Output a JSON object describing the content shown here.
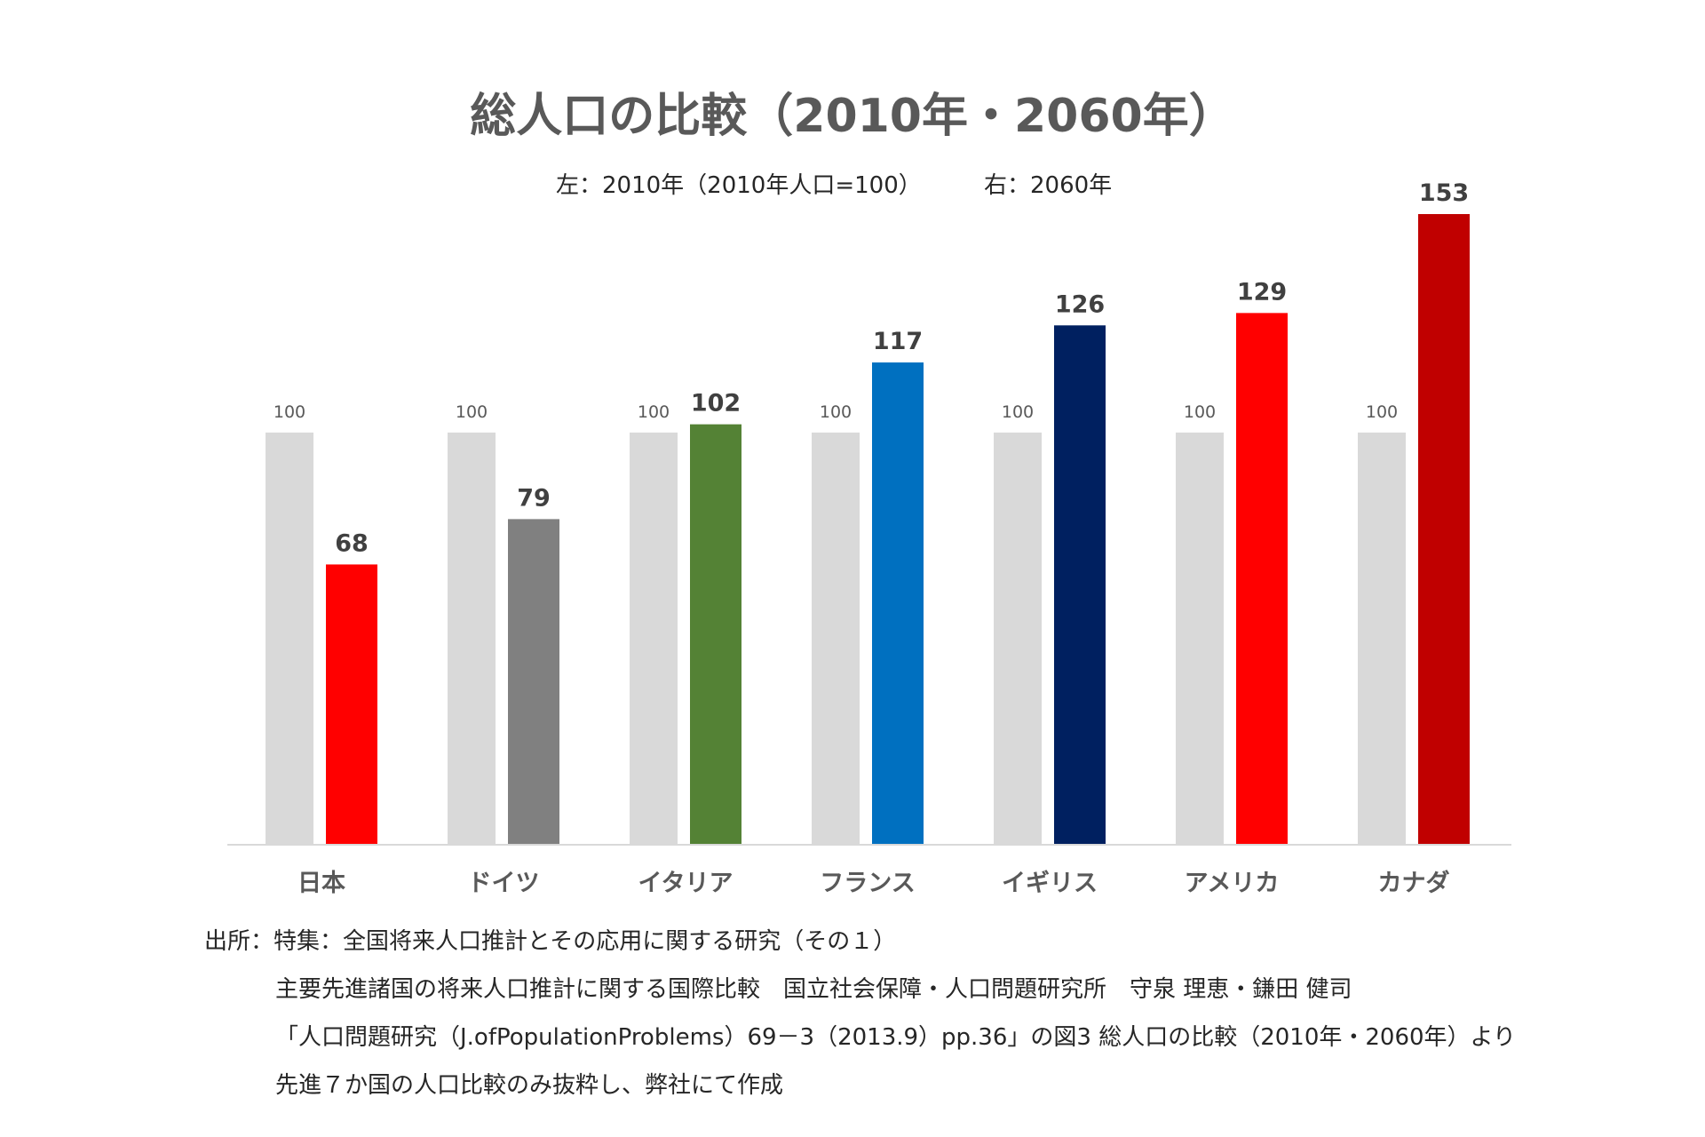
{
  "chart_data": {
    "type": "bar",
    "title": "総人口の比較（2010年・2060年）",
    "subtitle_left": "左：2010年（2010年人口=100）",
    "subtitle_right": "右：2060年",
    "categories": [
      "日本",
      "ドイツ",
      "イタリア",
      "フランス",
      "イギリス",
      "アメリカ",
      "カナダ"
    ],
    "series": [
      {
        "name": "2010年",
        "values": [
          100,
          100,
          100,
          100,
          100,
          100,
          100
        ],
        "color": "#d9d9d9",
        "label_color": "#595959"
      },
      {
        "name": "2060年",
        "values": [
          68,
          79,
          102,
          117,
          126,
          129,
          153
        ],
        "colors": [
          "#ff0000",
          "#808080",
          "#548235",
          "#0070c0",
          "#002060",
          "#ff0000",
          "#c00000"
        ],
        "label_color": "#404040"
      }
    ],
    "ylim": [
      0,
      153
    ],
    "grid": false,
    "legend": "none"
  },
  "source": {
    "lines": [
      "出所：特集：全国将来人口推計とその応用に関する研究（その１）",
      "主要先進諸国の将来人口推計に関する国際比較　国立社会保障・人口問題研究所　守泉 理恵・鎌田 健司",
      "「人口問題研究（J.ofPopulationProblems）69－3（2013.9）pp.36」の図3 総人口の比較（2010年・2060年）より",
      "先進７か国の人口比較のみ抜粋し、弊社にて作成"
    ]
  }
}
